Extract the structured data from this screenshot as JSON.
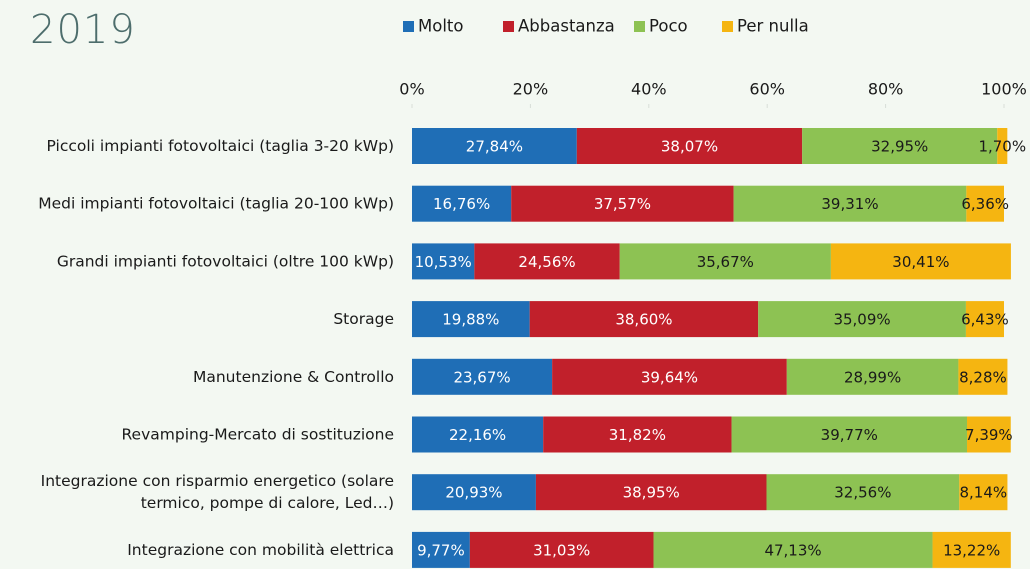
{
  "chart_data": {
    "type": "stacked-bar-horizontal",
    "title": "2019",
    "categories": [
      "Piccoli impianti fotovoltaici (taglia 3-20 kWp)",
      "Medi impianti fotovoltaici (taglia 20-100 kWp)",
      "Grandi impianti fotovoltaici (oltre 100 kWp)",
      "Storage",
      "Manutenzione & Controllo",
      "Revamping-Mercato di sostituzione",
      "Integrazione con risparmio energetico (solare\ntermico, pompe di calore, Led…)",
      "Integrazione con mobilità elettrica"
    ],
    "series": [
      {
        "name": "Molto",
        "color": "#1f6eb6",
        "values": [
          27.84,
          16.76,
          10.53,
          19.88,
          23.67,
          22.16,
          20.93,
          9.77
        ],
        "value_labels": [
          "27,84%",
          "16,76%",
          "10,53%",
          "19,88%",
          "23,67%",
          "22,16%",
          "20,93%",
          "9,77%"
        ]
      },
      {
        "name": "Abbastanza",
        "color": "#c1202b",
        "values": [
          38.07,
          37.57,
          24.56,
          38.6,
          39.64,
          31.82,
          38.95,
          31.03
        ],
        "value_labels": [
          "38,07%",
          "37,57%",
          "24,56%",
          "38,60%",
          "39,64%",
          "31,82%",
          "38,95%",
          "31,03%"
        ]
      },
      {
        "name": "Poco",
        "color": "#8dc253",
        "values": [
          32.95,
          39.31,
          35.67,
          35.09,
          28.99,
          39.77,
          32.56,
          47.13
        ],
        "value_labels": [
          "32,95%",
          "39,31%",
          "35,67%",
          "35,09%",
          "28,99%",
          "39,77%",
          "32,56%",
          "47,13%"
        ]
      },
      {
        "name": "Per nulla",
        "color": "#f5b511",
        "values": [
          1.7,
          6.36,
          30.41,
          6.43,
          8.28,
          7.39,
          8.14,
          13.22
        ],
        "value_labels": [
          "1,70%",
          "6,36%",
          "30,41%",
          "6,43%",
          "8,28%",
          "7,39%",
          "8,14%",
          "13,22%"
        ]
      }
    ],
    "xlim": [
      0,
      100
    ],
    "xticks": [
      {
        "value": 0,
        "label": "0%"
      },
      {
        "value": 20,
        "label": "20%"
      },
      {
        "value": 40,
        "label": "40%"
      },
      {
        "value": 60,
        "label": "60%"
      },
      {
        "value": 80,
        "label": "80%"
      },
      {
        "value": 100,
        "label": "100%"
      }
    ],
    "legend": "top"
  }
}
